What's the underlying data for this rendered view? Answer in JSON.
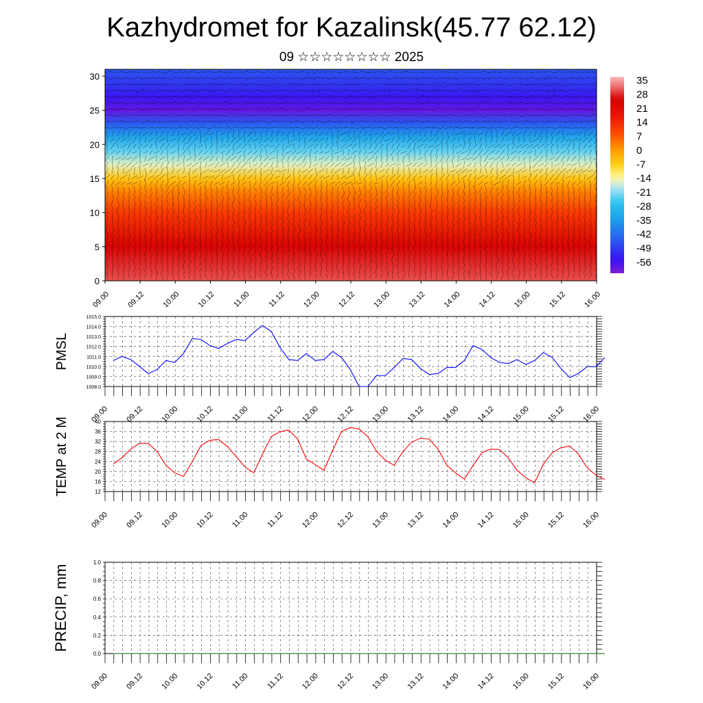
{
  "title": "Kazhydromet for Kazalinsk(45.77 62.12)",
  "subtitle": "09 ☆☆☆☆☆☆☆☆ 2025",
  "colors": {
    "pmsl_line": "#0000ff",
    "temp_line": "#ff0000",
    "precip_line": "#006400",
    "grid": "#555555",
    "frame": "#000000"
  },
  "chart_data": [
    {
      "type": "heatmap",
      "name": "upper-air-cross-section",
      "x_ticks": [
        "09.00",
        "09.12",
        "10.00",
        "10.12",
        "11.00",
        "11.12",
        "12.00",
        "12.12",
        "13.00",
        "13.12",
        "14.00",
        "14.12",
        "15.00",
        "15.12",
        "16.00"
      ],
      "y_ticks": [
        "0",
        "5",
        "10",
        "15",
        "20",
        "25",
        "30"
      ],
      "ylim": [
        0,
        31
      ],
      "colorbar_labels": [
        "35",
        "28",
        "21",
        "14",
        "7",
        "0",
        "-7",
        "-14",
        "-21",
        "-28",
        "-35",
        "-42",
        "-49",
        "-56"
      ],
      "colorbar_range": [
        -63,
        42
      ],
      "temp_profile": [
        {
          "level": 0,
          "value": 35
        },
        {
          "level": 5,
          "value": 28
        },
        {
          "level": 10,
          "value": 15
        },
        {
          "level": 13,
          "value": 6
        },
        {
          "level": 15,
          "value": -3
        },
        {
          "level": 17,
          "value": -14
        },
        {
          "level": 19,
          "value": -22
        },
        {
          "level": 21,
          "value": -32
        },
        {
          "level": 23,
          "value": -45
        },
        {
          "level": 25,
          "value": -60
        },
        {
          "level": 27,
          "value": -55
        },
        {
          "level": 29,
          "value": -50
        },
        {
          "level": 31,
          "value": -46
        }
      ],
      "vectors": "wind arrows overlaid"
    },
    {
      "type": "line",
      "name": "pmsl",
      "ylabel": "PMSL",
      "ylim": [
        1008.0,
        1015.0
      ],
      "y_ticks": [
        "1008.0",
        "1009.0",
        "1010.0",
        "1011.0",
        "1012.0",
        "1013.0",
        "1014.0",
        "1015.0"
      ],
      "x_ticks": [
        "09.00",
        "09.12",
        "10.00",
        "10.12",
        "11.00",
        "11.12",
        "12.00",
        "12.12",
        "13.00",
        "13.12",
        "14.00",
        "14.12",
        "15.00",
        "15.12",
        "16.00"
      ],
      "x_step_hours": 3,
      "values": [
        1010.6,
        1011.0,
        1010.7,
        1010.0,
        1009.3,
        1009.7,
        1010.6,
        1010.4,
        1011.3,
        1012.8,
        1012.7,
        1012.1,
        1011.8,
        1012.3,
        1012.7,
        1012.6,
        1013.4,
        1014.1,
        1013.5,
        1011.9,
        1010.7,
        1010.6,
        1011.3,
        1010.6,
        1010.7,
        1011.5,
        1010.9,
        1009.7,
        1008.0,
        1008.0,
        1009.1,
        1009.1,
        1009.9,
        1010.8,
        1010.7,
        1009.8,
        1009.2,
        1009.3,
        1009.9,
        1009.9,
        1010.6,
        1012.1,
        1011.7,
        1010.9,
        1010.4,
        1010.3,
        1010.7,
        1010.2,
        1010.6,
        1011.4,
        1010.9,
        1009.8,
        1008.9,
        1009.3,
        1010.0,
        1010.0,
        1010.9
      ]
    },
    {
      "type": "line",
      "name": "temp-2m",
      "ylabel": "TEMP at 2 M",
      "ylim": [
        12,
        40
      ],
      "y_ticks": [
        "12",
        "16",
        "20",
        "24",
        "28",
        "32",
        "36",
        "40"
      ],
      "x_ticks": [
        "09.00",
        "09.12",
        "10.00",
        "10.12",
        "11.00",
        "11.12",
        "12.00",
        "12.12",
        "13.00",
        "13.12",
        "14.00",
        "14.12",
        "15.00",
        "15.12",
        "16.00"
      ],
      "x_step_hours": 3,
      "values": [
        23.0,
        25.5,
        29.0,
        31.3,
        31.2,
        28.0,
        22.5,
        19.5,
        18.0,
        24.0,
        30.5,
        32.5,
        32.8,
        30.0,
        26.0,
        21.8,
        19.5,
        27.0,
        34.0,
        36.0,
        36.6,
        33.0,
        25.0,
        22.8,
        20.5,
        28.5,
        36.0,
        37.6,
        37.0,
        34.0,
        28.0,
        24.5,
        22.5,
        28.0,
        31.8,
        33.3,
        33.0,
        29.0,
        22.5,
        19.5,
        17.0,
        22.5,
        27.5,
        29.0,
        28.8,
        25.5,
        20.5,
        17.5,
        15.5,
        23.0,
        27.5,
        29.5,
        30.2,
        27.0,
        21.5,
        18.5,
        16.8
      ]
    },
    {
      "type": "line",
      "name": "precipitation",
      "ylabel": "PRECIP, mm",
      "ylim": [
        0.0,
        1.0
      ],
      "y_ticks": [
        "0.0",
        "0.2",
        "0.4",
        "0.6",
        "0.8",
        "1.0"
      ],
      "x_ticks": [
        "09.00",
        "09.12",
        "10.00",
        "10.12",
        "11.00",
        "11.12",
        "12.00",
        "12.12",
        "13.00",
        "13.12",
        "14.00",
        "14.12",
        "15.00",
        "15.12",
        "16.00"
      ],
      "x_step_hours": 3,
      "values": [
        0,
        0,
        0,
        0,
        0,
        0,
        0,
        0,
        0,
        0,
        0,
        0,
        0,
        0,
        0,
        0,
        0,
        0,
        0,
        0,
        0,
        0,
        0,
        0,
        0,
        0,
        0,
        0,
        0,
        0,
        0,
        0,
        0,
        0,
        0,
        0,
        0,
        0,
        0,
        0,
        0,
        0,
        0,
        0,
        0,
        0,
        0,
        0,
        0,
        0,
        0,
        0,
        0,
        0,
        0,
        0,
        0
      ]
    }
  ]
}
